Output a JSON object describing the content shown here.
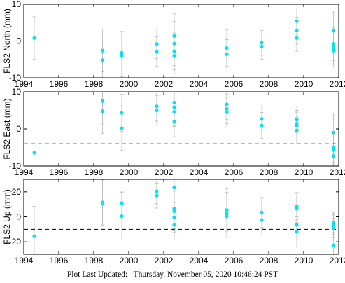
{
  "footer": {
    "label": "Plot Last Updated:",
    "value": "Thursday, November 05, 2020 10:46:24 PST"
  },
  "colors": {
    "points": "#00e5ee",
    "errorbars": "#bbbbbb",
    "reference": "#000000"
  },
  "chart_data": [
    {
      "type": "scatter",
      "ylabel": "FLS2 North (mm)",
      "xlim": [
        1994,
        2012
      ],
      "ylim": [
        -10,
        10
      ],
      "xticks": [
        1994,
        1996,
        1998,
        2000,
        2002,
        2004,
        2006,
        2008,
        2010,
        2012
      ],
      "yticks": [
        -10,
        0,
        10
      ],
      "reference_line": 0,
      "points": [
        {
          "x": 1994.6,
          "y": 0.8,
          "err": 5.8
        },
        {
          "x": 1998.5,
          "y": -2.6,
          "err": 5.8
        },
        {
          "x": 1998.5,
          "y": -5.2,
          "err": 5.8
        },
        {
          "x": 1999.6,
          "y": -3.2,
          "err": 5.8
        },
        {
          "x": 1999.6,
          "y": -3.9,
          "err": 5.8
        },
        {
          "x": 2001.6,
          "y": -0.8,
          "err": 4.0
        },
        {
          "x": 2001.6,
          "y": -2.9,
          "err": 4.0
        },
        {
          "x": 2002.6,
          "y": 1.4,
          "err": 6.0
        },
        {
          "x": 2002.6,
          "y": -0.7,
          "err": 6.0
        },
        {
          "x": 2002.6,
          "y": -2.8,
          "err": 5.0
        },
        {
          "x": 2002.6,
          "y": -4.0,
          "err": 5.0
        },
        {
          "x": 2005.6,
          "y": -1.9,
          "err": 5.0
        },
        {
          "x": 2005.6,
          "y": -3.6,
          "err": 4.0
        },
        {
          "x": 2007.6,
          "y": -0.5,
          "err": 3.4
        },
        {
          "x": 2007.6,
          "y": -1.5,
          "err": 3.4
        },
        {
          "x": 2009.6,
          "y": 5.4,
          "err": 3.6
        },
        {
          "x": 2009.6,
          "y": 2.9,
          "err": 3.6
        },
        {
          "x": 2009.6,
          "y": 0.8,
          "err": 3.6
        },
        {
          "x": 2011.7,
          "y": 2.9,
          "err": 5.0
        },
        {
          "x": 2011.7,
          "y": -0.8,
          "err": 4.5
        },
        {
          "x": 2011.7,
          "y": -1.8,
          "err": 4.5
        },
        {
          "x": 2011.7,
          "y": -2.6,
          "err": 4.5
        }
      ]
    },
    {
      "type": "scatter",
      "ylabel": "FLS2 East (mm)",
      "xlim": [
        1994,
        2012
      ],
      "ylim": [
        -10,
        10
      ],
      "xticks": [
        1994,
        1996,
        1998,
        2000,
        2002,
        2004,
        2006,
        2008,
        2010,
        2012
      ],
      "yticks": [
        -10,
        0,
        10
      ],
      "reference_line": -4,
      "points": [
        {
          "x": 1994.6,
          "y": -6.4,
          "err": 0
        },
        {
          "x": 1998.5,
          "y": 7.5,
          "err": 6.0
        },
        {
          "x": 1998.5,
          "y": 4.8,
          "err": 6.0
        },
        {
          "x": 1999.6,
          "y": 4.3,
          "err": 5.0
        },
        {
          "x": 1999.6,
          "y": 0.2,
          "err": 6.0
        },
        {
          "x": 2001.6,
          "y": 6.1,
          "err": 4.0
        },
        {
          "x": 2001.6,
          "y": 5.0,
          "err": 4.0
        },
        {
          "x": 2002.6,
          "y": 7.1,
          "err": 5.0
        },
        {
          "x": 2002.6,
          "y": 5.8,
          "err": 5.0
        },
        {
          "x": 2002.6,
          "y": 4.6,
          "err": 4.0
        },
        {
          "x": 2002.6,
          "y": 1.9,
          "err": 4.0
        },
        {
          "x": 2005.6,
          "y": 6.6,
          "err": 4.0
        },
        {
          "x": 2005.6,
          "y": 5.4,
          "err": 4.0
        },
        {
          "x": 2005.6,
          "y": 4.5,
          "err": 4.0
        },
        {
          "x": 2007.6,
          "y": 2.7,
          "err": 3.5
        },
        {
          "x": 2007.6,
          "y": 0.9,
          "err": 3.5
        },
        {
          "x": 2009.6,
          "y": 2.5,
          "err": 3.6
        },
        {
          "x": 2009.6,
          "y": 1.4,
          "err": 3.6
        },
        {
          "x": 2009.6,
          "y": 0.9,
          "err": 3.6
        },
        {
          "x": 2009.6,
          "y": -0.4,
          "err": 3.6
        },
        {
          "x": 2011.7,
          "y": -1.0,
          "err": 5.2
        },
        {
          "x": 2011.7,
          "y": -5.0,
          "err": 4.0
        },
        {
          "x": 2011.7,
          "y": -5.6,
          "err": 4.0
        },
        {
          "x": 2011.7,
          "y": -7.3,
          "err": 4.0
        }
      ]
    },
    {
      "type": "scatter",
      "ylabel": "FLS2 Up (mm)",
      "xlim": [
        1994,
        2012
      ],
      "ylim": [
        -30,
        30
      ],
      "xticks": [
        1994,
        1996,
        1998,
        2000,
        2002,
        2004,
        2006,
        2008,
        2010,
        2012
      ],
      "yticks": [
        -20,
        0,
        20
      ],
      "reference_line": -10,
      "points": [
        {
          "x": 1994.6,
          "y": -15.5,
          "err": 24.0
        },
        {
          "x": 1998.5,
          "y": 11.5,
          "err": 18.0
        },
        {
          "x": 1998.5,
          "y": 10.5,
          "err": 18.0
        },
        {
          "x": 1999.6,
          "y": 11.0,
          "err": 9.5
        },
        {
          "x": 1999.6,
          "y": 0.5,
          "err": 19.0
        },
        {
          "x": 2001.6,
          "y": 20.5,
          "err": 10.0
        },
        {
          "x": 2001.6,
          "y": 17.0,
          "err": 10.0
        },
        {
          "x": 2002.6,
          "y": 23.5,
          "err": 16.0
        },
        {
          "x": 2002.6,
          "y": 6.5,
          "err": 16.0
        },
        {
          "x": 2002.6,
          "y": 4.5,
          "err": 16.0
        },
        {
          "x": 2002.6,
          "y": -0.5,
          "err": 12.0
        },
        {
          "x": 2002.6,
          "y": -6.5,
          "err": 12.0
        },
        {
          "x": 2005.6,
          "y": 5.5,
          "err": 17.0
        },
        {
          "x": 2005.6,
          "y": 2.5,
          "err": 17.0
        },
        {
          "x": 2005.6,
          "y": 0.5,
          "err": 17.0
        },
        {
          "x": 2007.6,
          "y": 3.5,
          "err": 12.0
        },
        {
          "x": 2007.6,
          "y": -2.5,
          "err": 12.0
        },
        {
          "x": 2009.6,
          "y": 8.5,
          "err": 11.0
        },
        {
          "x": 2009.6,
          "y": 6.5,
          "err": 11.0
        },
        {
          "x": 2009.6,
          "y": -6.5,
          "err": 12.0
        },
        {
          "x": 2009.6,
          "y": -12.0,
          "err": 12.0
        },
        {
          "x": 2011.7,
          "y": -4.5,
          "err": 8.0
        },
        {
          "x": 2011.7,
          "y": -6.5,
          "err": 8.0
        },
        {
          "x": 2011.7,
          "y": -9.0,
          "err": 8.0
        },
        {
          "x": 2011.7,
          "y": -23.0,
          "err": 9.0
        }
      ]
    }
  ]
}
